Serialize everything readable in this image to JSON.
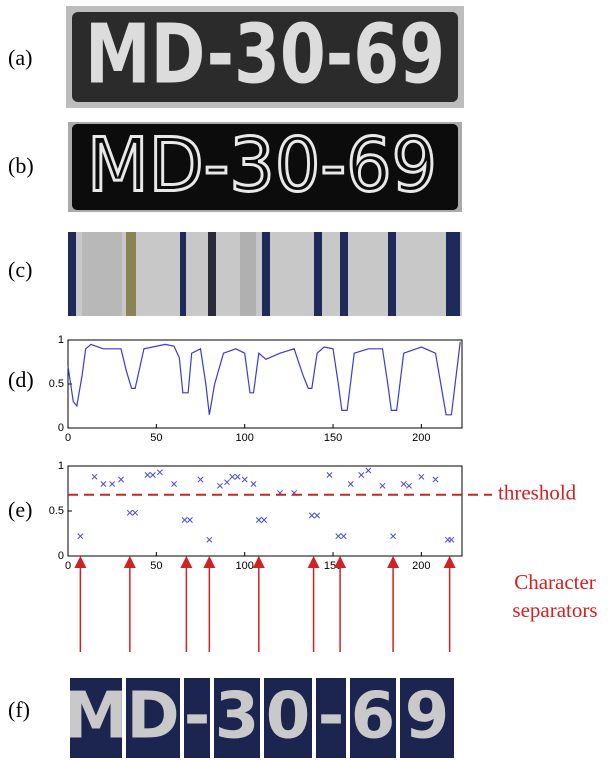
{
  "panel_labels": [
    "(a)",
    "(b)",
    "(c)",
    "(d)",
    "(e)",
    "(f)"
  ],
  "plate_text": "MD-30-69",
  "segments": [
    "M",
    "D",
    "-",
    "3",
    "0",
    "-",
    "6",
    "9"
  ],
  "annotations": {
    "threshold": "threshold",
    "separators": [
      "Character",
      "separators"
    ]
  },
  "chart_data": [
    {
      "type": "line",
      "color": "#3a3ad8",
      "x": [
        0,
        3,
        5,
        8,
        10,
        13,
        20,
        30,
        33,
        36,
        38,
        43,
        55,
        60,
        63,
        65,
        68,
        70,
        75,
        78,
        80,
        83,
        88,
        95,
        100,
        103,
        105,
        108,
        112,
        120,
        128,
        133,
        136,
        138,
        141,
        145,
        150,
        153,
        155,
        158,
        162,
        170,
        178,
        181,
        183,
        186,
        190,
        200,
        208,
        211,
        214,
        217,
        222
      ],
      "values": [
        0.7,
        0.3,
        0.25,
        0.6,
        0.9,
        0.95,
        0.9,
        0.9,
        0.65,
        0.45,
        0.45,
        0.9,
        0.95,
        0.93,
        0.8,
        0.4,
        0.4,
        0.85,
        0.9,
        0.5,
        0.15,
        0.5,
        0.85,
        0.9,
        0.85,
        0.4,
        0.4,
        0.85,
        0.78,
        0.85,
        0.9,
        0.6,
        0.45,
        0.45,
        0.85,
        0.92,
        0.9,
        0.5,
        0.2,
        0.2,
        0.85,
        0.9,
        0.9,
        0.5,
        0.2,
        0.2,
        0.85,
        0.92,
        0.85,
        0.5,
        0.15,
        0.15,
        0.98
      ],
      "xlim": [
        0,
        223
      ],
      "ylim": [
        0,
        1
      ],
      "xticks": [
        0,
        50,
        100,
        150,
        200
      ],
      "yticks": [
        0,
        0.5,
        1
      ]
    },
    {
      "type": "scatter",
      "color": "#4a4ae0",
      "x": [
        7,
        15,
        20,
        25,
        30,
        35,
        38,
        45,
        48,
        52,
        60,
        66,
        69,
        75,
        80,
        86,
        90,
        93,
        96,
        100,
        105,
        108,
        111,
        120,
        128,
        138,
        141,
        148,
        153,
        156,
        160,
        166,
        170,
        178,
        184,
        190,
        193,
        200,
        208,
        215,
        217
      ],
      "values": [
        0.22,
        0.88,
        0.8,
        0.8,
        0.85,
        0.48,
        0.48,
        0.9,
        0.9,
        0.93,
        0.8,
        0.4,
        0.4,
        0.85,
        0.18,
        0.78,
        0.82,
        0.88,
        0.88,
        0.85,
        0.8,
        0.4,
        0.4,
        0.7,
        0.7,
        0.45,
        0.45,
        0.9,
        0.22,
        0.22,
        0.8,
        0.9,
        0.95,
        0.78,
        0.22,
        0.8,
        0.78,
        0.88,
        0.85,
        0.18,
        0.18
      ],
      "xlim": [
        0,
        223
      ],
      "ylim": [
        0,
        1
      ],
      "xticks": [
        0,
        50,
        100,
        150,
        200
      ],
      "yticks": [
        0,
        0.5,
        1
      ],
      "threshold": 0.68,
      "threshold_color": "#d42020",
      "separators": [
        7,
        35,
        67,
        80,
        108,
        139,
        154,
        184,
        216
      ]
    }
  ]
}
